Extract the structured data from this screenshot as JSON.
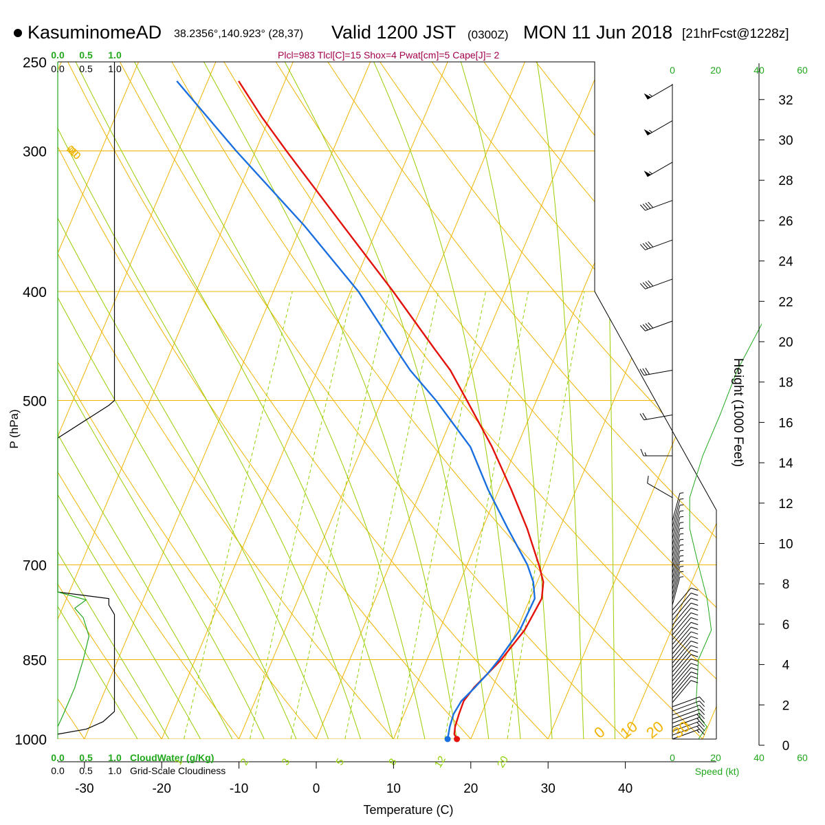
{
  "header": {
    "station": "KasuminomeAD",
    "coords": "38.2356°,140.923° (28,37)",
    "valid": "Valid 1200 JST",
    "valid_z": "(0300Z)",
    "date": "MON 11 Jun 2018",
    "forecast": "[21hrFcst@1228z]",
    "indices": "Plcl=983 Tlcl[C]=15 Shox=4 Pwat[cm]=5 Cape[J]= 2"
  },
  "colors": {
    "temperature": "#e3120b",
    "dewpoint": "#1a6fe0",
    "isotherm_isobar": "#f0b400",
    "dry_adiabat": "#f0b400",
    "moist_adiabat": "#99cc00",
    "mixing_ratio": "#8fd000",
    "cloud_water": "#21a81c",
    "green_text": "#21a81c",
    "indices_text": "#a0004a"
  },
  "chart_data": {
    "type": "line",
    "subtype": "skew-T log-P sounding",
    "xlabel": "Temperature (C)",
    "ylabel": "P (hPa)",
    "right_axis_label": "Height (1000 Feet)",
    "pressure_ticks": [
      "250",
      "300",
      "400",
      "500",
      "700",
      "850",
      "1000"
    ],
    "pressure_values": [
      250,
      300,
      400,
      500,
      700,
      850,
      1000
    ],
    "temperature_ticks": [
      "-30",
      "-20",
      "-10",
      "0",
      "10",
      "20",
      "30",
      "40"
    ],
    "temperature_values": [
      -30,
      -20,
      -10,
      0,
      10,
      20,
      30,
      40
    ],
    "height_ticks": [
      "0",
      "2",
      "4",
      "6",
      "8",
      "10",
      "12",
      "14",
      "16",
      "18",
      "20",
      "22",
      "24",
      "26",
      "28",
      "30",
      "32"
    ],
    "ylim": [
      250,
      1000
    ],
    "xlim_at_1000hPa": [
      -35,
      45
    ],
    "series": [
      {
        "name": "",
        "role": "temperature",
        "points": [
          [
            1000,
            18.2
          ],
          [
            990,
            17.6
          ],
          [
            975,
            17.3
          ],
          [
            950,
            17.1
          ],
          [
            925,
            17.0
          ],
          [
            900,
            17.6
          ],
          [
            875,
            18.6
          ],
          [
            850,
            19.6
          ],
          [
            800,
            21.0
          ],
          [
            750,
            21.5
          ],
          [
            725,
            20.8
          ],
          [
            700,
            19.3
          ],
          [
            650,
            15.8
          ],
          [
            600,
            11.6
          ],
          [
            550,
            6.8
          ],
          [
            500,
            1.0
          ],
          [
            470,
            -2.8
          ],
          [
            450,
            -6.0
          ],
          [
            400,
            -14.5
          ],
          [
            350,
            -24.5
          ],
          [
            300,
            -36.0
          ],
          [
            280,
            -41.0
          ],
          [
            260,
            -46.0
          ]
        ]
      },
      {
        "name": "",
        "role": "dewpoint",
        "points": [
          [
            1000,
            17.0
          ],
          [
            975,
            16.6
          ],
          [
            950,
            16.4
          ],
          [
            925,
            16.7
          ],
          [
            900,
            17.7
          ],
          [
            875,
            18.6
          ],
          [
            850,
            19.3
          ],
          [
            800,
            20.4
          ],
          [
            750,
            20.6
          ],
          [
            725,
            19.5
          ],
          [
            700,
            17.8
          ],
          [
            650,
            13.3
          ],
          [
            600,
            8.6
          ],
          [
            550,
            4.0
          ],
          [
            500,
            -3.0
          ],
          [
            470,
            -8.0
          ],
          [
            450,
            -11.0
          ],
          [
            400,
            -19.0
          ],
          [
            350,
            -29.5
          ],
          [
            300,
            -42.5
          ],
          [
            260,
            -54.0
          ]
        ]
      }
    ],
    "isotherm_labels": [
      "10",
      "0",
      "-10",
      "-20",
      "-30"
    ],
    "isotherm_label_values": [
      10,
      0,
      -10,
      -20,
      -30
    ],
    "dry_adiabat_labels": [
      "0",
      "10",
      "20",
      "30"
    ],
    "dry_adiabat_label_values": [
      0,
      10,
      20,
      30
    ],
    "mixing_ratio_labels": [
      "1",
      "2",
      "3",
      "5",
      "8",
      "12",
      "20"
    ],
    "mixing_ratio_values": [
      1,
      2,
      3,
      5,
      8,
      12,
      20
    ],
    "wind_barbs": [
      {
        "pressure": 262,
        "speed_kt": 55,
        "dir": 240
      },
      {
        "pressure": 282,
        "speed_kt": 55,
        "dir": 240
      },
      {
        "pressure": 307,
        "speed_kt": 55,
        "dir": 240
      },
      {
        "pressure": 332,
        "speed_kt": 40,
        "dir": 250
      },
      {
        "pressure": 360,
        "speed_kt": 40,
        "dir": 250
      },
      {
        "pressure": 390,
        "speed_kt": 40,
        "dir": 250
      },
      {
        "pressure": 425,
        "speed_kt": 40,
        "dir": 250
      },
      {
        "pressure": 470,
        "speed_kt": 30,
        "dir": 260
      },
      {
        "pressure": 515,
        "speed_kt": 20,
        "dir": 260
      },
      {
        "pressure": 560,
        "speed_kt": 15,
        "dir": 270
      },
      {
        "pressure": 610,
        "speed_kt": 10,
        "dir": 300
      }
    ],
    "speed_profile": {
      "xlabel": "Speed (kt)",
      "ticks": [
        "0",
        "20",
        "40",
        "60"
      ],
      "tick_values": [
        0,
        20,
        40,
        60
      ]
    },
    "cloud_panel": {
      "top_ticks": [
        "0.0",
        "0.5",
        "1.0"
      ],
      "bottom_ticks": [
        "0.0",
        "0.5",
        "1.0"
      ],
      "cloud_water_label": "CloudWater (g/Kg)",
      "cloudiness_label": "Grid-Scale Cloudiness",
      "cloudiness": [
        [
          250,
          1.0
        ],
        [
          500,
          1.0
        ],
        [
          505,
          0.9
        ],
        [
          540,
          0.0
        ],
        [
          740,
          0.0
        ],
        [
          750,
          0.9
        ],
        [
          760,
          0.9
        ],
        [
          775,
          1.0
        ],
        [
          945,
          1.0
        ],
        [
          965,
          0.8
        ],
        [
          980,
          0.5
        ],
        [
          990,
          0.0
        ]
      ],
      "cloud_water": [
        [
          250,
          0.0
        ],
        [
          740,
          0.0
        ],
        [
          752,
          0.5
        ],
        [
          765,
          0.3
        ],
        [
          780,
          0.45
        ],
        [
          810,
          0.55
        ],
        [
          850,
          0.45
        ],
        [
          900,
          0.3
        ],
        [
          950,
          0.1
        ],
        [
          975,
          0.0
        ]
      ]
    }
  }
}
